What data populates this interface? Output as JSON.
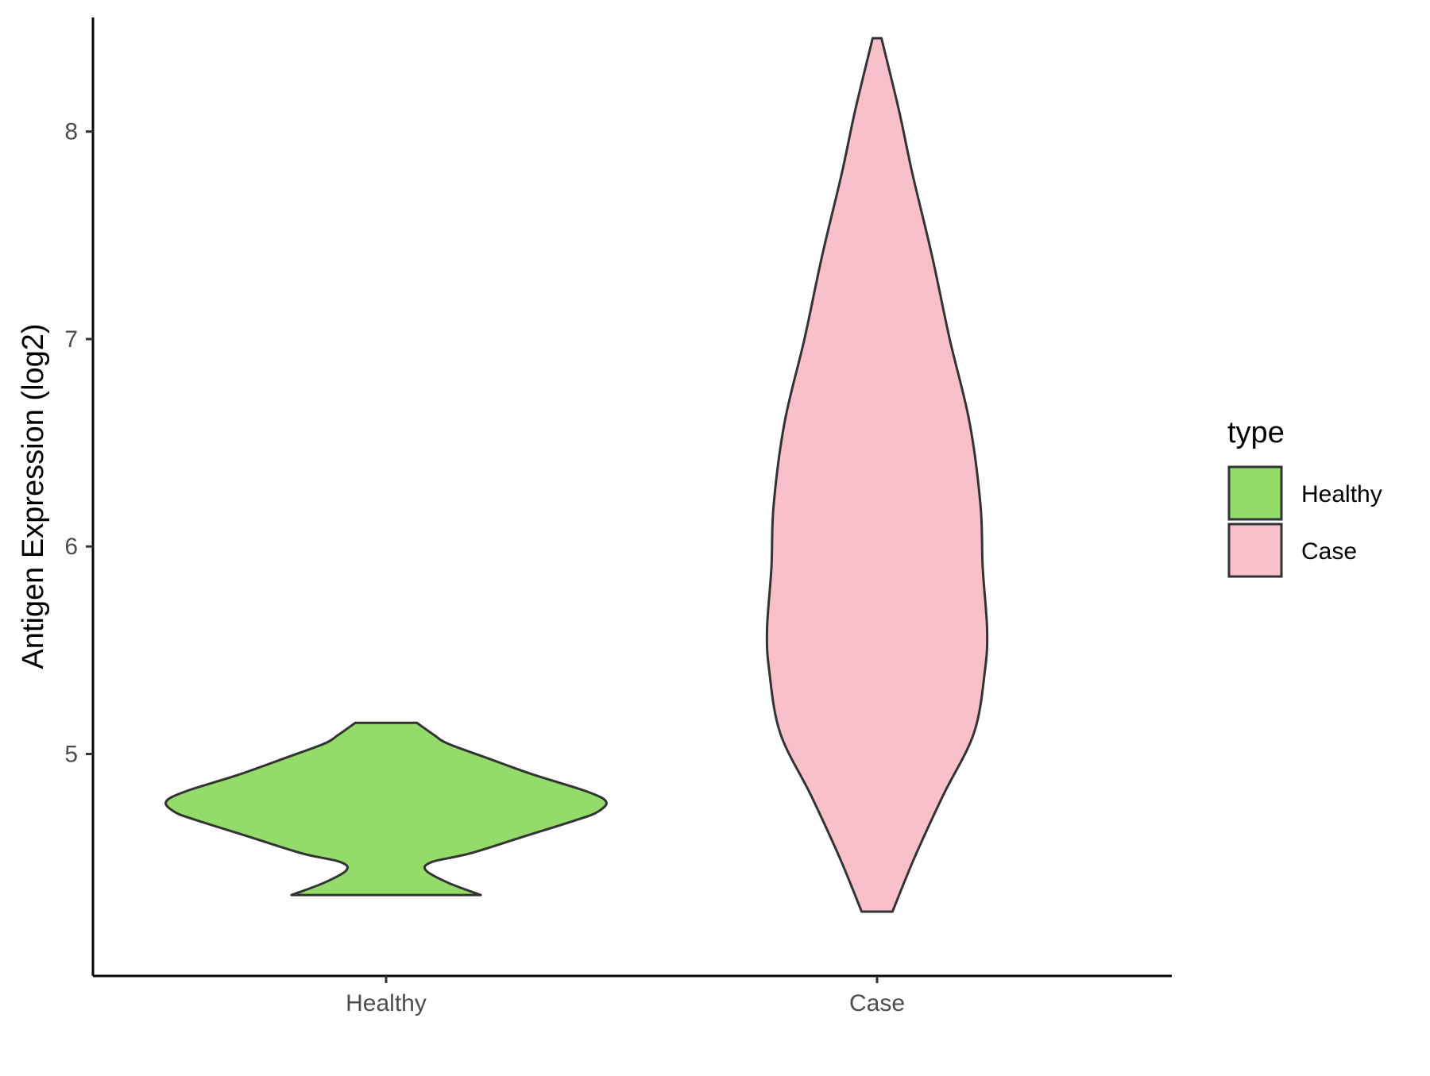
{
  "chart_data": {
    "type": "violin",
    "xlabel": "",
    "ylabel": "Antigen Expression (log2)",
    "categories": [
      "Healthy",
      "Case"
    ],
    "yticks": [
      "5",
      "6",
      "7",
      "8"
    ],
    "ylim": [
      3.93,
      8.55
    ],
    "grid": false,
    "legend": {
      "title": "type",
      "position": "right",
      "items": [
        {
          "label": "Healthy",
          "color": "#93dc6a"
        },
        {
          "label": "Case",
          "color": "#f7c0cb"
        }
      ]
    },
    "series": [
      {
        "name": "Healthy",
        "color": "#93dc6a",
        "min": 4.32,
        "max": 5.15,
        "density": [
          [
            4.32,
            0.43
          ],
          [
            4.38,
            0.28
          ],
          [
            4.44,
            0.18
          ],
          [
            4.48,
            0.21
          ],
          [
            4.52,
            0.38
          ],
          [
            4.6,
            0.62
          ],
          [
            4.68,
            0.86
          ],
          [
            4.72,
            0.96
          ],
          [
            4.77,
            1.0
          ],
          [
            4.82,
            0.91
          ],
          [
            4.9,
            0.67
          ],
          [
            4.98,
            0.46
          ],
          [
            5.05,
            0.28
          ],
          [
            5.09,
            0.22
          ],
          [
            5.15,
            0.14
          ]
        ]
      },
      {
        "name": "Case",
        "color": "#f7c0cb",
        "min": 4.24,
        "max": 8.45,
        "density": [
          [
            4.24,
            0.07
          ],
          [
            4.5,
            0.17
          ],
          [
            4.8,
            0.3
          ],
          [
            5.1,
            0.44
          ],
          [
            5.4,
            0.49
          ],
          [
            5.6,
            0.5
          ],
          [
            5.9,
            0.48
          ],
          [
            6.2,
            0.47
          ],
          [
            6.6,
            0.42
          ],
          [
            7.0,
            0.33
          ],
          [
            7.4,
            0.25
          ],
          [
            7.8,
            0.16
          ],
          [
            8.1,
            0.1
          ],
          [
            8.45,
            0.02
          ]
        ]
      }
    ]
  }
}
